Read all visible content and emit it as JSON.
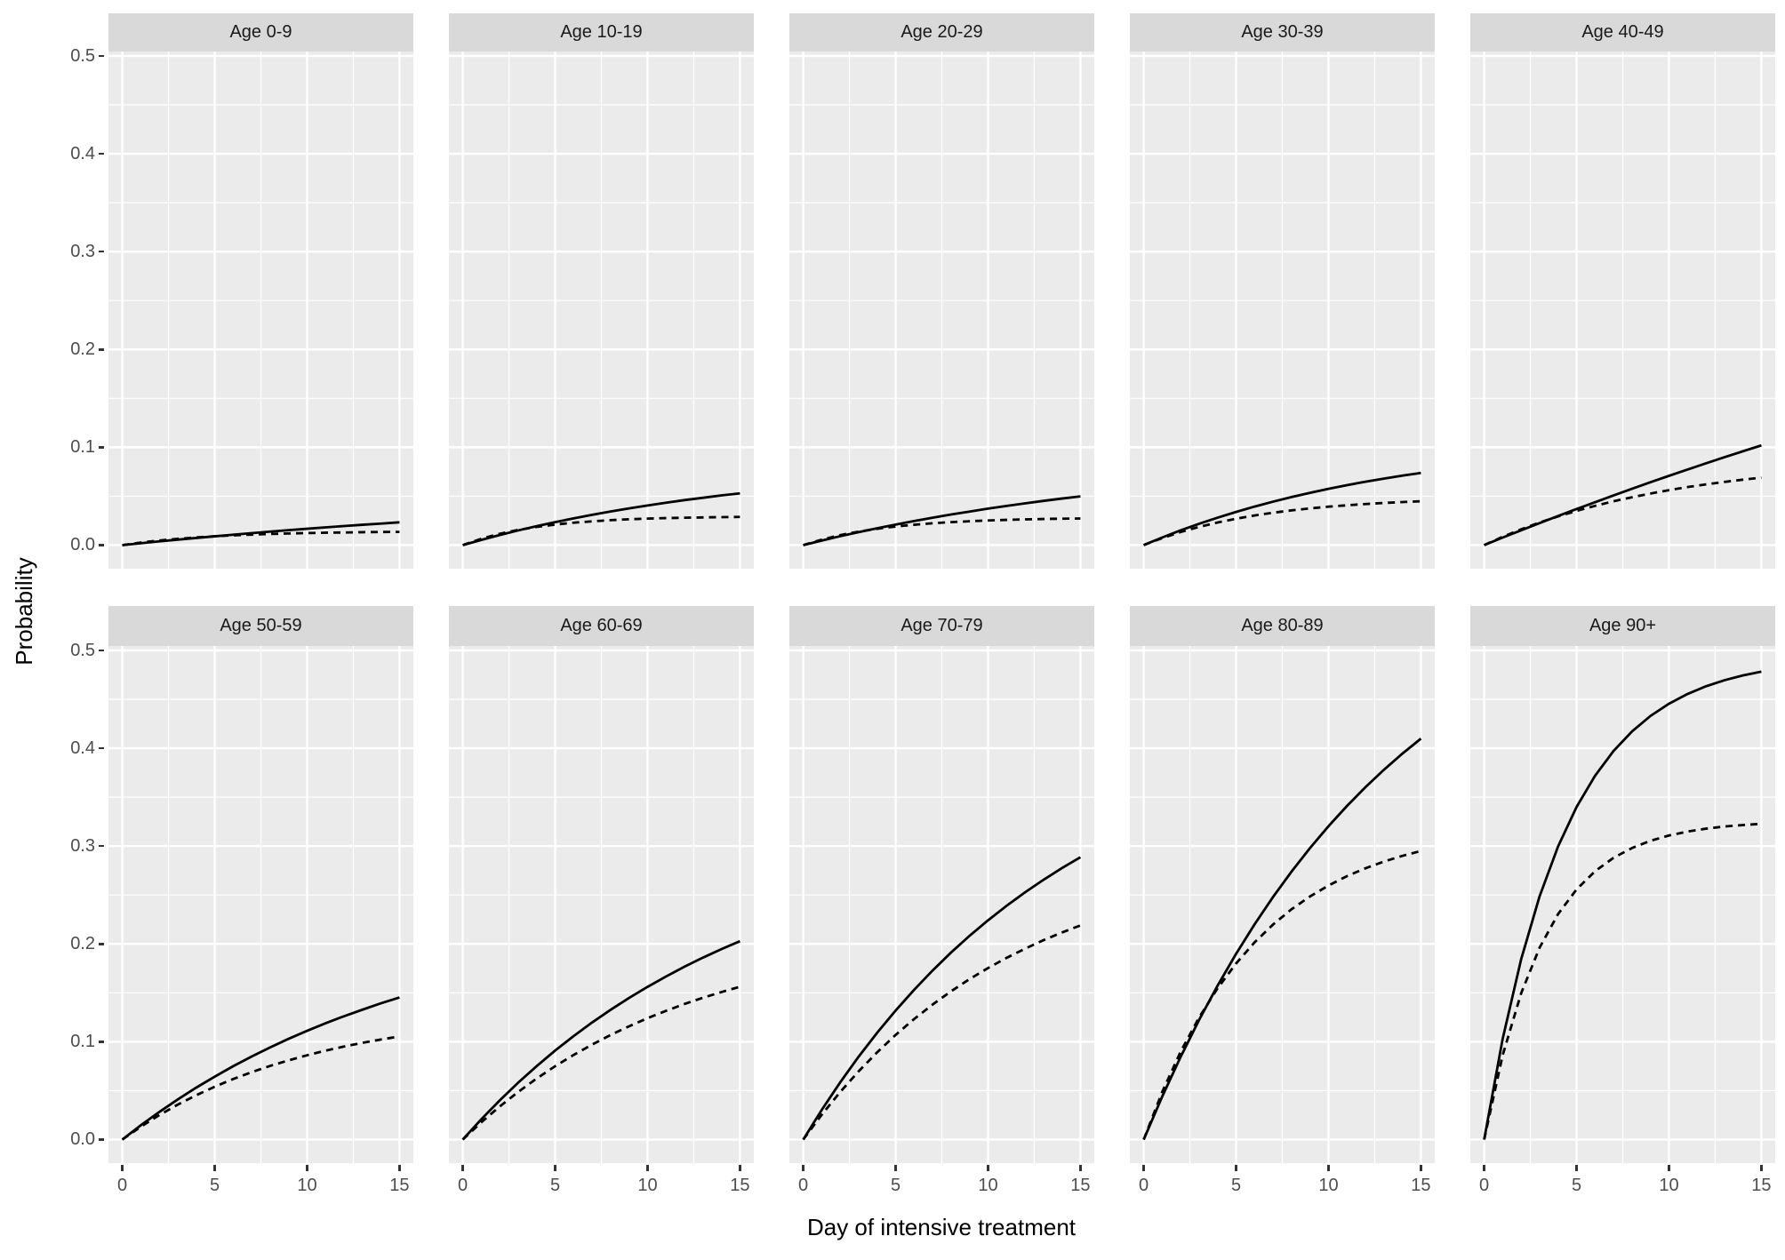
{
  "chart_data": {
    "type": "line",
    "title": "",
    "xlabel": "Day of intensive treatment",
    "ylabel": "Probability",
    "x": [
      0,
      1,
      2,
      3,
      4,
      5,
      6,
      7,
      8,
      9,
      10,
      11,
      12,
      13,
      14,
      15
    ],
    "x_ticks": [
      0,
      5,
      10,
      15
    ],
    "x_tick_labels": [
      "0",
      "5",
      "10",
      "15"
    ],
    "x_minor_ticks": [
      2.5,
      7.5,
      12.5
    ],
    "y_ticks": [
      0.0,
      0.1,
      0.2,
      0.3,
      0.4,
      0.5
    ],
    "y_tick_labels": [
      "0.0",
      "0.1",
      "0.2",
      "0.3",
      "0.4",
      "0.5"
    ],
    "y_minor_ticks": [
      0.05,
      0.15,
      0.25,
      0.35,
      0.45
    ],
    "xlim": [
      -0.75,
      15.75
    ],
    "ylim": [
      -0.0241,
      0.5045
    ],
    "grid": "major and minor, white on grey panel",
    "legend_position": "none",
    "facet_layout": {
      "rows": 2,
      "cols": 5
    },
    "facets": [
      {
        "label": "Age 0-9",
        "series": [
          {
            "style": "solid",
            "values": [
              0,
              0.0019,
              0.0038,
              0.0056,
              0.0073,
              0.009,
              0.0106,
              0.0122,
              0.0138,
              0.0153,
              0.0167,
              0.0181,
              0.0195,
              0.0208,
              0.022,
              0.0233
            ]
          },
          {
            "style": "dashed",
            "values": [
              0,
              0.0026,
              0.0047,
              0.0064,
              0.0079,
              0.009,
              0.01,
              0.0107,
              0.0114,
              0.0119,
              0.0123,
              0.0127,
              0.0129,
              0.0132,
              0.0134,
              0.0135
            ]
          }
        ]
      },
      {
        "label": "Age 10-19",
        "series": [
          {
            "style": "solid",
            "values": [
              0,
              0.0053,
              0.0103,
              0.015,
              0.0194,
              0.0235,
              0.0273,
              0.031,
              0.0344,
              0.0375,
              0.0405,
              0.0433,
              0.046,
              0.0484,
              0.0508,
              0.0529
            ]
          },
          {
            "style": "dashed",
            "values": [
              0,
              0.0065,
              0.0116,
              0.0155,
              0.0186,
              0.021,
              0.0229,
              0.0243,
              0.0255,
              0.0264,
              0.0271,
              0.0276,
              0.028,
              0.0283,
              0.0286,
              0.0288
            ]
          }
        ]
      },
      {
        "label": "Age 20-29",
        "series": [
          {
            "style": "solid",
            "values": [
              0,
              0.0046,
              0.0091,
              0.0132,
              0.0172,
              0.021,
              0.0246,
              0.028,
              0.0313,
              0.0343,
              0.0373,
              0.04,
              0.0427,
              0.0452,
              0.0476,
              0.0498
            ]
          },
          {
            "style": "dashed",
            "values": [
              0,
              0.0056,
              0.0102,
              0.0138,
              0.0167,
              0.019,
              0.0208,
              0.0223,
              0.0235,
              0.0244,
              0.0252,
              0.0258,
              0.0263,
              0.0267,
              0.027,
              0.0272
            ]
          }
        ]
      },
      {
        "label": "Age 30-39",
        "series": [
          {
            "style": "solid",
            "values": [
              0,
              0.0078,
              0.0151,
              0.0218,
              0.0281,
              0.0339,
              0.0394,
              0.0444,
              0.0491,
              0.0534,
              0.0575,
              0.0613,
              0.0648,
              0.068,
              0.071,
              0.0738
            ]
          },
          {
            "style": "dashed",
            "values": [
              0,
              0.0072,
              0.0134,
              0.0186,
              0.0231,
              0.027,
              0.0303,
              0.0331,
              0.0355,
              0.0375,
              0.0393,
              0.0407,
              0.042,
              0.0431,
              0.044,
              0.0448
            ]
          }
        ]
      },
      {
        "label": "Age 40-49",
        "series": [
          {
            "style": "solid",
            "values": [
              0,
              0.0077,
              0.0151,
              0.0225,
              0.0298,
              0.0369,
              0.0439,
              0.0508,
              0.0576,
              0.0643,
              0.0708,
              0.0772,
              0.0836,
              0.0898,
              0.0959,
              0.1019
            ]
          },
          {
            "style": "dashed",
            "values": [
              0,
              0.0085,
              0.0161,
              0.0231,
              0.0293,
              0.035,
              0.0401,
              0.0448,
              0.0489,
              0.0527,
              0.0562,
              0.0593,
              0.0621,
              0.0646,
              0.0669,
              0.069
            ]
          }
        ]
      },
      {
        "label": "Age 50-59",
        "series": [
          {
            "style": "solid",
            "values": [
              0,
              0.0146,
              0.0282,
              0.041,
              0.0531,
              0.0643,
              0.075,
              0.0849,
              0.0942,
              0.103,
              0.1112,
              0.1189,
              0.1261,
              0.1328,
              0.1393,
              0.1452
            ]
          },
          {
            "style": "dashed",
            "values": [
              0,
              0.0131,
              0.025,
              0.0357,
              0.0453,
              0.054,
              0.0619,
              0.0689,
              0.0753,
              0.081,
              0.0862,
              0.0909,
              0.0951,
              0.0989,
              0.1023,
              0.1054
            ]
          }
        ]
      },
      {
        "label": "Age 60-69",
        "series": [
          {
            "style": "solid",
            "values": [
              0,
              0.0207,
              0.04,
              0.0582,
              0.0751,
              0.091,
              0.1058,
              0.1197,
              0.1326,
              0.1448,
              0.1561,
              0.1667,
              0.1767,
              0.186,
              0.1947,
              0.2028
            ]
          },
          {
            "style": "dashed",
            "values": [
              0,
              0.0176,
              0.0338,
              0.0487,
              0.0624,
              0.075,
              0.0865,
              0.0971,
              0.1069,
              0.1158,
              0.1241,
              0.1316,
              0.1386,
              0.145,
              0.1508,
              0.1562
            ]
          }
        ]
      },
      {
        "label": "Age 70-79",
        "series": [
          {
            "style": "solid",
            "values": [
              0,
              0.0303,
              0.0585,
              0.0848,
              0.1092,
              0.1319,
              0.1531,
              0.1728,
              0.1912,
              0.2083,
              0.2241,
              0.2389,
              0.2527,
              0.2655,
              0.2775,
              0.2886
            ]
          },
          {
            "style": "dashed",
            "values": [
              0,
              0.0254,
              0.0486,
              0.0698,
              0.0892,
              0.107,
              0.1232,
              0.138,
              0.1516,
              0.164,
              0.1753,
              0.1857,
              0.1951,
              0.2038,
              0.2117,
              0.2189
            ]
          }
        ]
      },
      {
        "label": "Age 80-89",
        "series": [
          {
            "style": "solid",
            "values": [
              0,
              0.0439,
              0.0846,
              0.1224,
              0.1574,
              0.1899,
              0.22,
              0.248,
              0.2739,
              0.298,
              0.3203,
              0.341,
              0.3602,
              0.378,
              0.3945,
              0.4098
            ]
          },
          {
            "style": "dashed",
            "values": [
              0,
              0.0486,
              0.0899,
              0.1249,
              0.1547,
              0.18,
              0.2016,
              0.2198,
              0.2354,
              0.2485,
              0.2597,
              0.2693,
              0.2773,
              0.2842,
              0.29,
              0.295
            ]
          }
        ]
      },
      {
        "label": "Age 90+",
        "series": [
          {
            "style": "solid",
            "values": [
              0,
              0.1029,
              0.1843,
              0.2487,
              0.2997,
              0.34,
              0.3719,
              0.3972,
              0.4172,
              0.433,
              0.4455,
              0.4554,
              0.4633,
              0.4695,
              0.4744,
              0.4783
            ]
          },
          {
            "style": "dashed",
            "values": [
              0,
              0.0862,
              0.1495,
              0.1962,
              0.2305,
              0.2557,
              0.2743,
              0.288,
              0.298,
              0.3054,
              0.3108,
              0.3148,
              0.3178,
              0.32,
              0.3215,
              0.3227
            ]
          }
        ]
      }
    ]
  },
  "theme": {
    "panel_bg": "#EBEBEB",
    "strip_bg": "#D9D9D9",
    "grid_color": "#FFFFFF",
    "tick_label_color": "#4D4D4D",
    "tick_mark_color": "#333333",
    "line_color": "#000000",
    "axis_title_color": "#000000"
  }
}
